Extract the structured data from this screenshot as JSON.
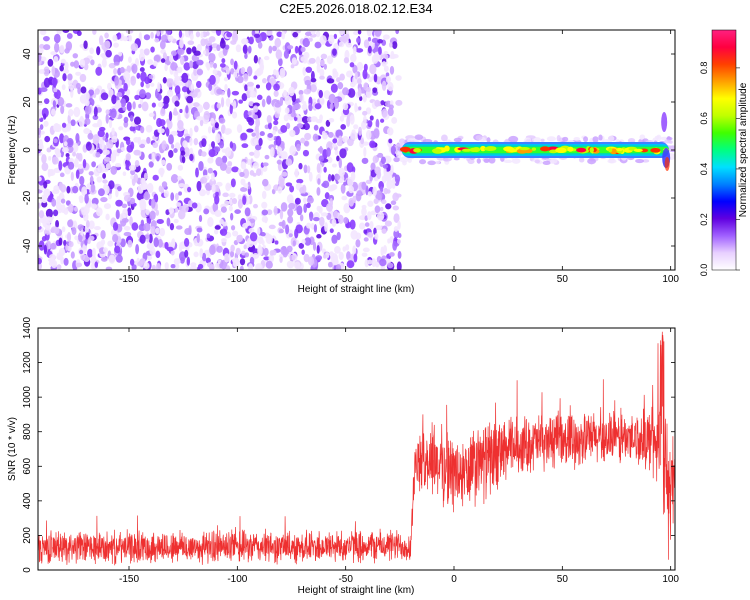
{
  "title": "C2E5.2026.018.02.12.E34",
  "chart_data": [
    {
      "type": "heatmap",
      "xlabel": "Height of straight line (km)",
      "ylabel": "Frequency (Hz)",
      "xlim": [
        -192,
        102
      ],
      "ylim": [
        -50,
        50
      ],
      "xticks": [
        -150,
        -100,
        -50,
        0,
        50,
        100
      ],
      "yticks": [
        -40,
        -20,
        0,
        20,
        40
      ],
      "colorbar": {
        "label": "Normalized spectral amplitude",
        "ticks": [
          0.0,
          0.2,
          0.4,
          0.6,
          0.8
        ],
        "range": [
          0,
          0.95
        ],
        "colors": [
          "#ffffff",
          "#e8d0ff",
          "#a060ff",
          "#6000e0",
          "#0000ff",
          "#0080ff",
          "#00e0ff",
          "#00ff80",
          "#40ff00",
          "#c0ff00",
          "#ffff00",
          "#ffa000",
          "#ff4000",
          "#ff0040",
          "#ff2080"
        ]
      },
      "noise_region": [
        -192,
        -25
      ],
      "signal_region": [
        -26,
        102
      ],
      "signal_center_hz": 0
    },
    {
      "type": "line",
      "xlabel": "Height of straight line (km)",
      "ylabel": "SNR (10 * v/v)",
      "xlim": [
        -192,
        102
      ],
      "ylim": [
        0,
        1400
      ],
      "xticks": [
        -150,
        -100,
        -50,
        0,
        50,
        100
      ],
      "yticks": [
        0,
        200,
        400,
        600,
        800,
        1000,
        1200,
        1400
      ],
      "series": [
        {
          "color": "#ee3030",
          "x": [
            -192,
            -180,
            -170,
            -160,
            -150,
            -140,
            -130,
            -120,
            -110,
            -100,
            -90,
            -80,
            -70,
            -60,
            -50,
            -40,
            -30,
            -20,
            -18,
            -15,
            -10,
            -5,
            0,
            5,
            10,
            15,
            20,
            25,
            30,
            35,
            40,
            50,
            60,
            70,
            80,
            90,
            95,
            97,
            99,
            102
          ],
          "y": [
            130,
            135,
            130,
            125,
            130,
            135,
            130,
            130,
            135,
            130,
            135,
            130,
            135,
            135,
            140,
            140,
            140,
            140,
            600,
            620,
            640,
            600,
            560,
            540,
            600,
            640,
            660,
            700,
            720,
            730,
            740,
            750,
            760,
            760,
            760,
            760,
            740,
            700,
            400,
            600
          ],
          "spread": [
            110,
            110,
            110,
            110,
            110,
            110,
            110,
            110,
            110,
            110,
            110,
            110,
            110,
            110,
            110,
            110,
            110,
            110,
            160,
            200,
            240,
            260,
            260,
            280,
            280,
            260,
            240,
            220,
            200,
            190,
            190,
            180,
            180,
            180,
            180,
            200,
            360,
            400,
            400,
            300
          ]
        }
      ]
    }
  ]
}
